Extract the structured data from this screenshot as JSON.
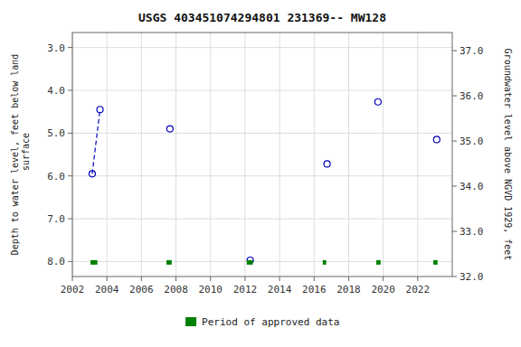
{
  "chart_data": {
    "type": "scatter",
    "title": "USGS 403451074294801 231369-- MW128",
    "ylabel": "Depth to water level, feet below land\n surface",
    "y2label": "Groundwater level above NGVD 1929, feet",
    "xlim": [
      2002,
      2024
    ],
    "ylim": [
      8.35,
      2.65
    ],
    "y2lim": [
      32.0,
      37.4
    ],
    "xticks": [
      2002,
      2004,
      2006,
      2008,
      2010,
      2012,
      2014,
      2016,
      2018,
      2020,
      2022
    ],
    "yticks": [
      {
        "value": 3.0,
        "label": "3.0"
      },
      {
        "value": 4.0,
        "label": "4.0"
      },
      {
        "value": 5.0,
        "label": "5.0"
      },
      {
        "value": 6.0,
        "label": "6.0"
      },
      {
        "value": 7.0,
        "label": "7.0"
      },
      {
        "value": 8.0,
        "label": "8.0"
      }
    ],
    "y2ticks": [
      {
        "value": 37.0,
        "label": "37.0"
      },
      {
        "value": 36.0,
        "label": "36.0"
      },
      {
        "value": 35.0,
        "label": "35.0"
      },
      {
        "value": 34.0,
        "label": "34.0"
      },
      {
        "value": 33.0,
        "label": "33.0"
      },
      {
        "value": 32.0,
        "label": "32.0"
      }
    ],
    "grid": true,
    "legend": "bottom",
    "series": [
      {
        "type": "scatter",
        "color": "#0000bb",
        "marker": "circle",
        "x": [
          2003.15,
          2003.6,
          2007.65,
          2012.3,
          2016.75,
          2019.7,
          2023.1
        ],
        "values": [
          5.95,
          4.45,
          4.9,
          7.97,
          5.72,
          4.27,
          5.15
        ]
      },
      {
        "type": "line",
        "color": "#0000bb",
        "line_style": "dashed",
        "x": [
          2003.15,
          2003.6
        ],
        "values": [
          5.95,
          4.45
        ]
      },
      {
        "type": "range_bar",
        "name": "Period of approved data",
        "color": "#008000",
        "orientation": "horizontal",
        "y": 8.02,
        "x_start": [
          2003.05,
          2007.45,
          2012.1,
          2016.5,
          2019.6,
          2022.9
        ],
        "x_end": [
          2003.45,
          2007.75,
          2012.45,
          2016.7,
          2019.85,
          2023.15
        ]
      }
    ]
  }
}
